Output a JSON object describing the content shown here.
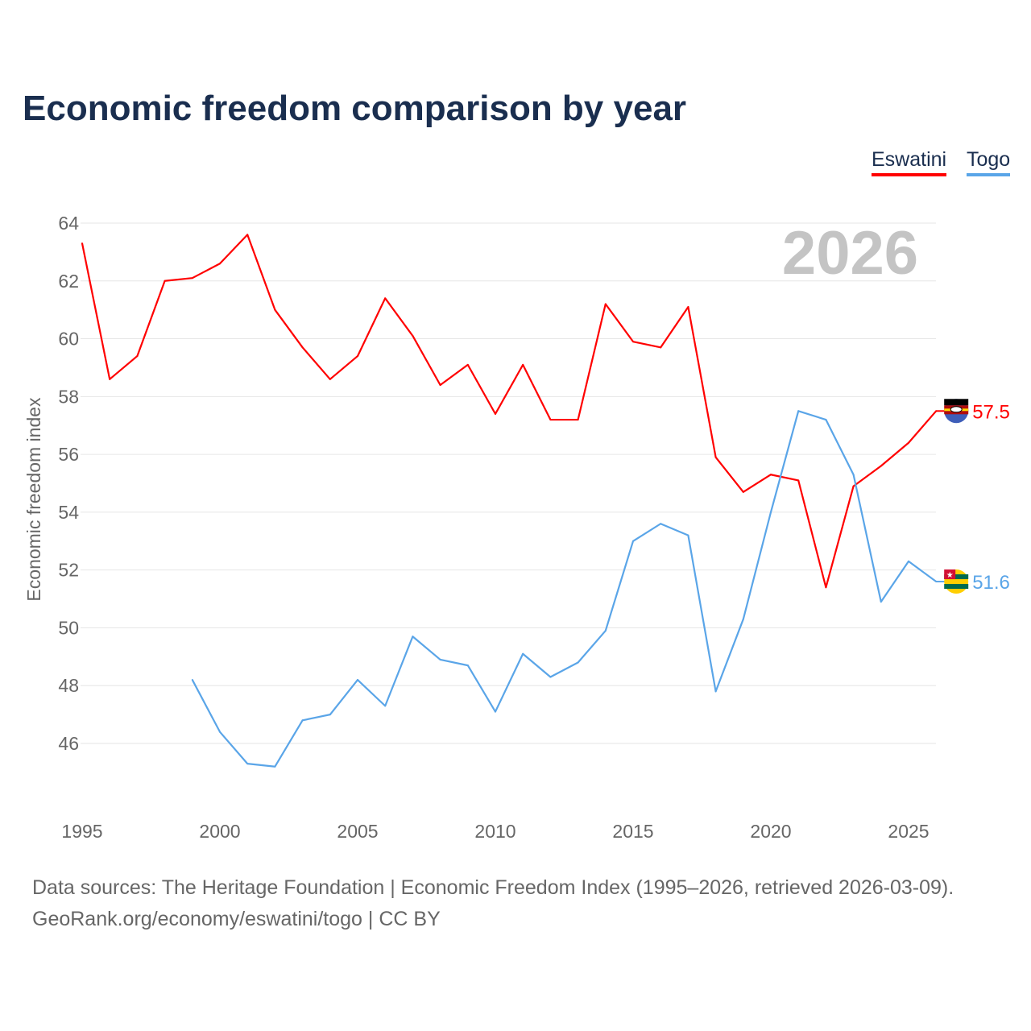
{
  "chart_data": {
    "type": "line",
    "title": "Economic freedom comparison by year",
    "ylabel": "Economic freedom index",
    "xlabel": "",
    "year_watermark": "2026",
    "ylim": [
      44,
      64.5
    ],
    "xlim": [
      1995,
      2026
    ],
    "yticks": [
      46,
      48,
      50,
      52,
      54,
      56,
      58,
      60,
      62,
      64
    ],
    "xticks": [
      1995,
      2000,
      2005,
      2010,
      2015,
      2020,
      2025
    ],
    "grid": true,
    "legend_position": "top-right",
    "series": [
      {
        "name": "Eswatini",
        "color": "#ff0000",
        "end_label": "57.5",
        "x": [
          1995,
          1996,
          1997,
          1998,
          1999,
          2000,
          2001,
          2002,
          2003,
          2004,
          2005,
          2006,
          2007,
          2008,
          2009,
          2010,
          2011,
          2012,
          2013,
          2014,
          2015,
          2016,
          2017,
          2018,
          2019,
          2020,
          2021,
          2022,
          2023,
          2024,
          2025,
          2026
        ],
        "values": [
          63.3,
          58.6,
          59.4,
          62.0,
          62.1,
          62.6,
          63.6,
          61.0,
          59.7,
          58.6,
          59.4,
          61.4,
          60.1,
          58.4,
          59.1,
          57.4,
          59.1,
          57.2,
          57.2,
          61.2,
          59.9,
          59.7,
          61.1,
          55.9,
          54.7,
          55.3,
          55.1,
          51.4,
          54.9,
          55.6,
          56.4,
          57.5
        ]
      },
      {
        "name": "Togo",
        "color": "#5aa5e8",
        "end_label": "51.6",
        "x": [
          1999,
          2000,
          2001,
          2002,
          2003,
          2004,
          2005,
          2006,
          2007,
          2008,
          2009,
          2010,
          2011,
          2012,
          2013,
          2014,
          2015,
          2016,
          2017,
          2018,
          2019,
          2020,
          2021,
          2022,
          2023,
          2024,
          2025,
          2026
        ],
        "values": [
          48.2,
          46.4,
          45.3,
          45.2,
          46.8,
          47.0,
          48.2,
          47.3,
          49.7,
          48.9,
          48.7,
          47.1,
          49.1,
          48.3,
          48.8,
          49.9,
          53.0,
          53.6,
          53.2,
          47.8,
          50.3,
          54.0,
          57.5,
          57.2,
          55.3,
          50.9,
          52.3,
          51.6
        ]
      }
    ]
  },
  "footer": {
    "sources": "Data sources: The Heritage Foundation | Economic Freedom Index (1995–2026, retrieved 2026-03-09).",
    "credit": "GeoRank.org/economy/eswatini/togo | CC BY"
  }
}
